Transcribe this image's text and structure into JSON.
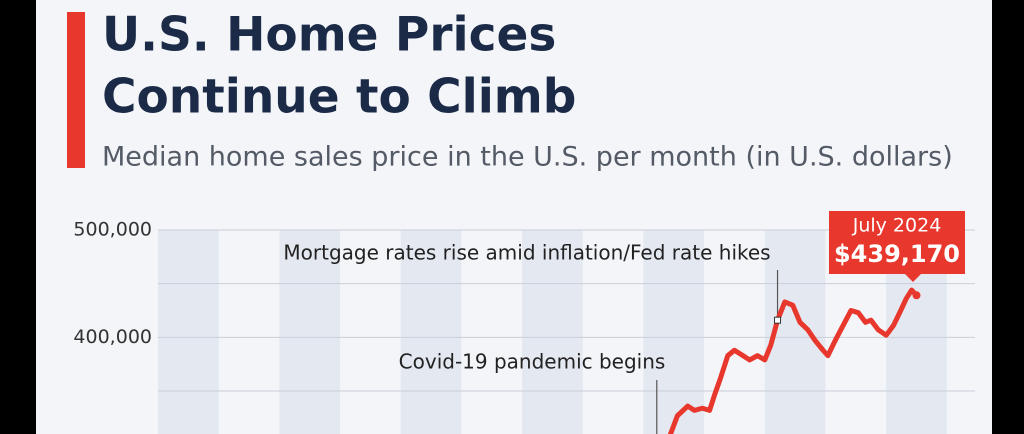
{
  "chart_data": {
    "type": "line",
    "title_lines": [
      "U.S. Home Prices",
      "Continue to Climb"
    ],
    "subtitle": "Median home sales price in the U.S. per month (in U.S. dollars)",
    "x": [
      2020.44,
      2020.56,
      2020.73,
      2020.84,
      2020.97,
      2021.09,
      2021.17,
      2021.27,
      2021.39,
      2021.5,
      2021.64,
      2021.75,
      2021.88,
      2022.0,
      2022.1,
      2022.21,
      2022.33,
      2022.46,
      2022.58,
      2022.71,
      2022.83,
      2022.96,
      2023.04,
      2023.16,
      2023.29,
      2023.42,
      2023.54,
      2023.66,
      2023.75,
      2023.87,
      2024.0,
      2024.12,
      2024.24,
      2024.33,
      2024.42,
      2024.5
    ],
    "series": [
      {
        "name": "Median home sales price",
        "color": "#e8372c",
        "values": [
          309000,
          327000,
          336000,
          332000,
          334000,
          332000,
          346000,
          362000,
          383000,
          388000,
          383000,
          379000,
          383000,
          379000,
          393000,
          416000,
          433000,
          430000,
          414000,
          407000,
          397000,
          388000,
          383000,
          397000,
          411000,
          425000,
          423000,
          414000,
          416000,
          407000,
          402000,
          411000,
          425000,
          436000,
          444000,
          439170
        ],
        "value_labels": [
          null,
          null,
          null,
          null,
          null,
          null,
          null,
          null,
          null,
          null,
          null,
          null,
          null,
          null,
          null,
          null,
          null,
          null,
          null,
          null,
          null,
          null,
          null,
          null,
          null,
          null,
          null,
          null,
          null,
          null,
          null,
          null,
          null,
          null,
          null,
          "$439,170"
        ]
      }
    ],
    "callout_title": "July 2024",
    "annotations": [
      {
        "text": "Mortgage rates rise amid inflation/Fed rate hikes",
        "x": 2022.21,
        "y": 416000
      },
      {
        "text": "Covid-19 pandemic begins",
        "x": 2020.22
      }
    ],
    "xlim": [
      2012,
      2025.25
    ],
    "ylim": [
      310000,
      500000
    ],
    "yticks": [
      {
        "value": 500000,
        "label": "500,000"
      },
      {
        "value": 400000,
        "label": "400,000"
      }
    ],
    "minor_gridlines": [
      450000,
      350000
    ],
    "grid": true
  }
}
